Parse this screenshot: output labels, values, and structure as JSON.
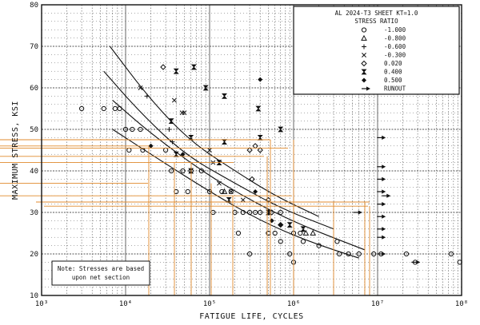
{
  "chart_data": {
    "type": "scatter",
    "xscale": "log",
    "xlim": [
      1000,
      100000000
    ],
    "ylim": [
      10,
      80
    ],
    "xlabel": "FATIGUE LIFE, CYCLES",
    "ylabel": "MAXIMUM STRESS, KSI",
    "x_tick_labels": [
      "10³",
      "10⁴",
      "10⁵",
      "10⁶",
      "10⁷",
      "10⁸"
    ],
    "y_ticks": [
      10,
      20,
      30,
      40,
      50,
      60,
      70,
      80
    ],
    "grid": true,
    "legend_position": "top-right",
    "legend": {
      "title": "AL 2024-T3 SHEET KT=1.0",
      "subtitle": "STRESS RATIO",
      "entries": [
        {
          "marker": "circle",
          "label": "-1.000"
        },
        {
          "marker": "triangle",
          "label": "-0.800"
        },
        {
          "marker": "plus",
          "label": "-0.600"
        },
        {
          "marker": "x",
          "label": "-0.300"
        },
        {
          "marker": "diamond-open",
          "label": "0.020"
        },
        {
          "marker": "hourglass",
          "label": "0.400"
        },
        {
          "marker": "diamond",
          "label": "0.500"
        },
        {
          "marker": "arrow",
          "label": "RUNOUT"
        }
      ]
    },
    "note": [
      "Note: Stresses are based",
      "upon net section"
    ],
    "series": [
      {
        "marker": "circle",
        "points": [
          [
            3000,
            55
          ],
          [
            5500,
            55
          ],
          [
            7500,
            55
          ],
          [
            8500,
            55
          ],
          [
            10000,
            50
          ],
          [
            12000,
            50
          ],
          [
            15000,
            50
          ],
          [
            11000,
            45
          ],
          [
            16000,
            45
          ],
          [
            30000,
            45
          ],
          [
            35000,
            40
          ],
          [
            48000,
            40
          ],
          [
            60000,
            40
          ],
          [
            80000,
            40
          ],
          [
            40000,
            35
          ],
          [
            55000,
            35
          ],
          [
            100000,
            35
          ],
          [
            140000,
            35
          ],
          [
            180000,
            35
          ],
          [
            110000,
            30
          ],
          [
            200000,
            30
          ],
          [
            250000,
            30
          ],
          [
            300000,
            30
          ],
          [
            350000,
            30
          ],
          [
            400000,
            30
          ],
          [
            700000,
            30
          ],
          [
            220000,
            25
          ],
          [
            500000,
            25
          ],
          [
            600000,
            25
          ],
          [
            1000000,
            25
          ],
          [
            1200000,
            25
          ],
          [
            700000,
            23
          ],
          [
            300000,
            20
          ],
          [
            900000,
            20
          ],
          [
            1000000,
            18
          ],
          [
            1300000,
            23
          ],
          [
            2000000,
            22
          ],
          [
            3300000,
            23
          ],
          [
            3500000,
            20
          ],
          [
            4500000,
            20
          ],
          [
            6000000,
            20
          ],
          [
            9000000,
            20
          ],
          [
            11000000,
            20
          ],
          [
            22000000,
            20
          ],
          [
            28000000,
            18
          ],
          [
            75000000,
            20
          ],
          [
            95000000,
            18
          ]
        ]
      },
      {
        "marker": "triangle",
        "points": [
          [
            1400000,
            25
          ],
          [
            1700000,
            25
          ],
          [
            150000,
            35
          ]
        ]
      },
      {
        "marker": "plus",
        "points": [
          [
            18000,
            58
          ],
          [
            33000,
            50
          ],
          [
            36000,
            47
          ]
        ]
      },
      {
        "marker": "x",
        "points": [
          [
            15000,
            60
          ],
          [
            38000,
            57
          ],
          [
            47000,
            54
          ],
          [
            50000,
            54
          ],
          [
            100000,
            45
          ],
          [
            110000,
            42
          ],
          [
            130000,
            37
          ],
          [
            180000,
            35
          ],
          [
            250000,
            33
          ]
        ]
      },
      {
        "marker": "diamond-open",
        "points": [
          [
            28000,
            65
          ],
          [
            300000,
            45
          ],
          [
            350000,
            46
          ],
          [
            400000,
            45
          ],
          [
            320000,
            38
          ],
          [
            500000,
            33
          ],
          [
            550000,
            30
          ],
          [
            700000,
            27
          ]
        ]
      },
      {
        "marker": "hourglass",
        "points": [
          [
            40000,
            64
          ],
          [
            65000,
            65
          ],
          [
            90000,
            60
          ],
          [
            35000,
            52
          ],
          [
            60000,
            48
          ],
          [
            40000,
            44
          ],
          [
            60000,
            40
          ],
          [
            130000,
            42
          ],
          [
            150000,
            58
          ],
          [
            150000,
            47
          ],
          [
            380000,
            55
          ],
          [
            400000,
            48
          ],
          [
            700000,
            50
          ],
          [
            170000,
            33
          ],
          [
            500000,
            30
          ],
          [
            900000,
            27
          ],
          [
            1300000,
            26
          ]
        ]
      },
      {
        "marker": "diamond",
        "points": [
          [
            400000,
            62
          ],
          [
            20000,
            46
          ],
          [
            48000,
            44
          ],
          [
            350000,
            35
          ],
          [
            550000,
            28
          ],
          [
            700000,
            27
          ]
        ]
      },
      {
        "marker": "arrow",
        "points": [
          [
            10500000,
            48
          ],
          [
            10500000,
            41
          ],
          [
            10500000,
            38
          ],
          [
            10500000,
            35
          ],
          [
            10500000,
            32
          ],
          [
            10500000,
            29
          ],
          [
            10500000,
            26
          ],
          [
            10500000,
            24
          ],
          [
            10500000,
            20
          ],
          [
            5500000,
            30
          ],
          [
            12000000,
            34
          ],
          [
            27000000,
            18
          ]
        ]
      }
    ],
    "fit_curves": [
      {
        "points": [
          [
            6500,
            70
          ],
          [
            20000,
            57
          ],
          [
            60000,
            47
          ],
          [
            200000,
            40
          ],
          [
            600000,
            34
          ],
          [
            2000000,
            29
          ]
        ]
      },
      {
        "points": [
          [
            5500,
            64
          ],
          [
            15000,
            54
          ],
          [
            50000,
            44
          ],
          [
            200000,
            37
          ],
          [
            700000,
            31
          ],
          [
            3000000,
            26
          ]
        ]
      },
      {
        "points": [
          [
            7000,
            57
          ],
          [
            20000,
            49
          ],
          [
            80000,
            40
          ],
          [
            300000,
            33
          ],
          [
            1200000,
            27
          ],
          [
            7000000,
            21
          ]
        ]
      },
      {
        "points": [
          [
            7000,
            50
          ],
          [
            20000,
            44
          ],
          [
            100000,
            35
          ],
          [
            400000,
            28
          ],
          [
            1500000,
            23
          ],
          [
            6000000,
            19
          ]
        ]
      }
    ]
  }
}
